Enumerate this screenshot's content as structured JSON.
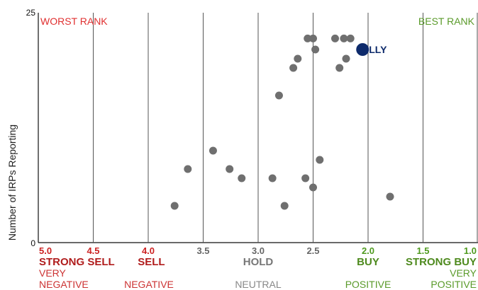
{
  "chart_data": {
    "type": "scatter",
    "ylabel": "Number of IRPs Reporting",
    "xlim": [
      5.0,
      1.0
    ],
    "ylim": [
      0,
      25
    ],
    "y_ticks": [
      "25",
      "0"
    ],
    "corner_labels": {
      "left": "WORST RANK",
      "right": "BEST RANK"
    },
    "x_ticks": [
      {
        "value": 5.0,
        "label": "5.0",
        "color": "#cc2222"
      },
      {
        "value": 4.5,
        "label": "4.5",
        "color": "#cc2222"
      },
      {
        "value": 4.0,
        "label": "4.0",
        "color": "#cc2222"
      },
      {
        "value": 3.5,
        "label": "3.5",
        "color": "#666666"
      },
      {
        "value": 3.0,
        "label": "3.0",
        "color": "#666666"
      },
      {
        "value": 2.5,
        "label": "2.5",
        "color": "#666666"
      },
      {
        "value": 2.0,
        "label": "2.0",
        "color": "#4e9a1e"
      },
      {
        "value": 1.5,
        "label": "1.5",
        "color": "#4e9a1e"
      },
      {
        "value": 1.0,
        "label": "1.0",
        "color": "#4e9a1e"
      }
    ],
    "ratings": [
      {
        "label": "STRONG SELL",
        "color": "#b01c1c",
        "x": 4.75
      },
      {
        "label": "SELL",
        "color": "#b01c1c",
        "x": 3.99
      },
      {
        "label": "HOLD",
        "color": "#777777",
        "x": 3.0
      },
      {
        "label": "BUY",
        "color": "#4e8a1e",
        "x": 2.0
      },
      {
        "label": "STRONG BUY",
        "color": "#4e8a1e",
        "x": 1.0
      }
    ],
    "sentiments": [
      {
        "line1": "VERY",
        "line2": "NEGATIVE",
        "color": "#cc3333",
        "x": 5.0
      },
      {
        "line1": "",
        "line2": "NEGATIVE",
        "color": "#cc3333",
        "x": 4.0
      },
      {
        "line1": "",
        "line2": "NEUTRAL",
        "color": "#888888",
        "x": 3.0
      },
      {
        "line1": "",
        "line2": "POSITIVE",
        "color": "#5a9a2a",
        "x": 2.0
      },
      {
        "line1": "VERY",
        "line2": "POSITIVE",
        "color": "#5a9a2a",
        "x": 1.0
      }
    ],
    "colors": {
      "grid": "#555555",
      "point": "#6f6f6f",
      "highlight": "#0d2a6b",
      "worst": "#e03030",
      "best": "#5a9a2a"
    },
    "highlight": {
      "label": "LLY",
      "x": 2.05,
      "y": 21.0
    },
    "points": [
      {
        "x": 2.55,
        "y": 22.2
      },
      {
        "x": 2.5,
        "y": 22.2
      },
      {
        "x": 2.3,
        "y": 22.2
      },
      {
        "x": 2.22,
        "y": 22.2
      },
      {
        "x": 2.16,
        "y": 22.2
      },
      {
        "x": 2.48,
        "y": 21.0
      },
      {
        "x": 2.64,
        "y": 20.0
      },
      {
        "x": 2.2,
        "y": 20.0
      },
      {
        "x": 2.68,
        "y": 19.0
      },
      {
        "x": 2.26,
        "y": 19.0
      },
      {
        "x": 2.81,
        "y": 16.0
      },
      {
        "x": 3.41,
        "y": 10.0
      },
      {
        "x": 2.44,
        "y": 9.0
      },
      {
        "x": 3.64,
        "y": 8.0
      },
      {
        "x": 3.26,
        "y": 8.0
      },
      {
        "x": 3.15,
        "y": 7.0
      },
      {
        "x": 2.87,
        "y": 7.0
      },
      {
        "x": 2.57,
        "y": 7.0
      },
      {
        "x": 2.5,
        "y": 6.0
      },
      {
        "x": 1.8,
        "y": 5.0
      },
      {
        "x": 3.76,
        "y": 4.0
      },
      {
        "x": 2.76,
        "y": 4.0
      }
    ]
  }
}
